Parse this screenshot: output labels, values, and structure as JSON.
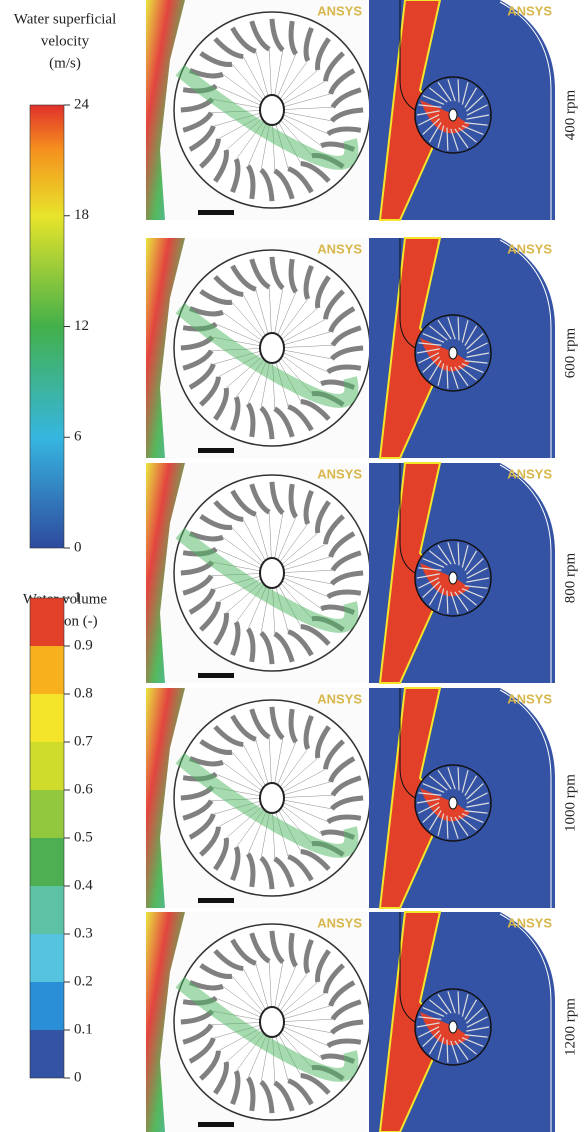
{
  "velocity_legend": {
    "title_lines": [
      "Water superficial",
      "velocity",
      "(m/s)"
    ],
    "lim": [
      0,
      24
    ],
    "ticks": [
      0,
      6,
      12,
      18,
      24
    ]
  },
  "fraction_legend": {
    "title_lines": [
      "Water volume",
      "fraction (-)"
    ],
    "lim": [
      0,
      1
    ],
    "ticks": [
      0,
      0.1,
      0.2,
      0.3,
      0.4,
      0.5,
      0.6,
      0.7,
      0.8,
      0.9,
      1
    ]
  },
  "watermark": "ANSYS",
  "rows": [
    {
      "label": "400 rpm"
    },
    {
      "label": "600 rpm"
    },
    {
      "label": "800 rpm"
    },
    {
      "label": "1000 rpm"
    },
    {
      "label": "1200 rpm"
    }
  ]
}
